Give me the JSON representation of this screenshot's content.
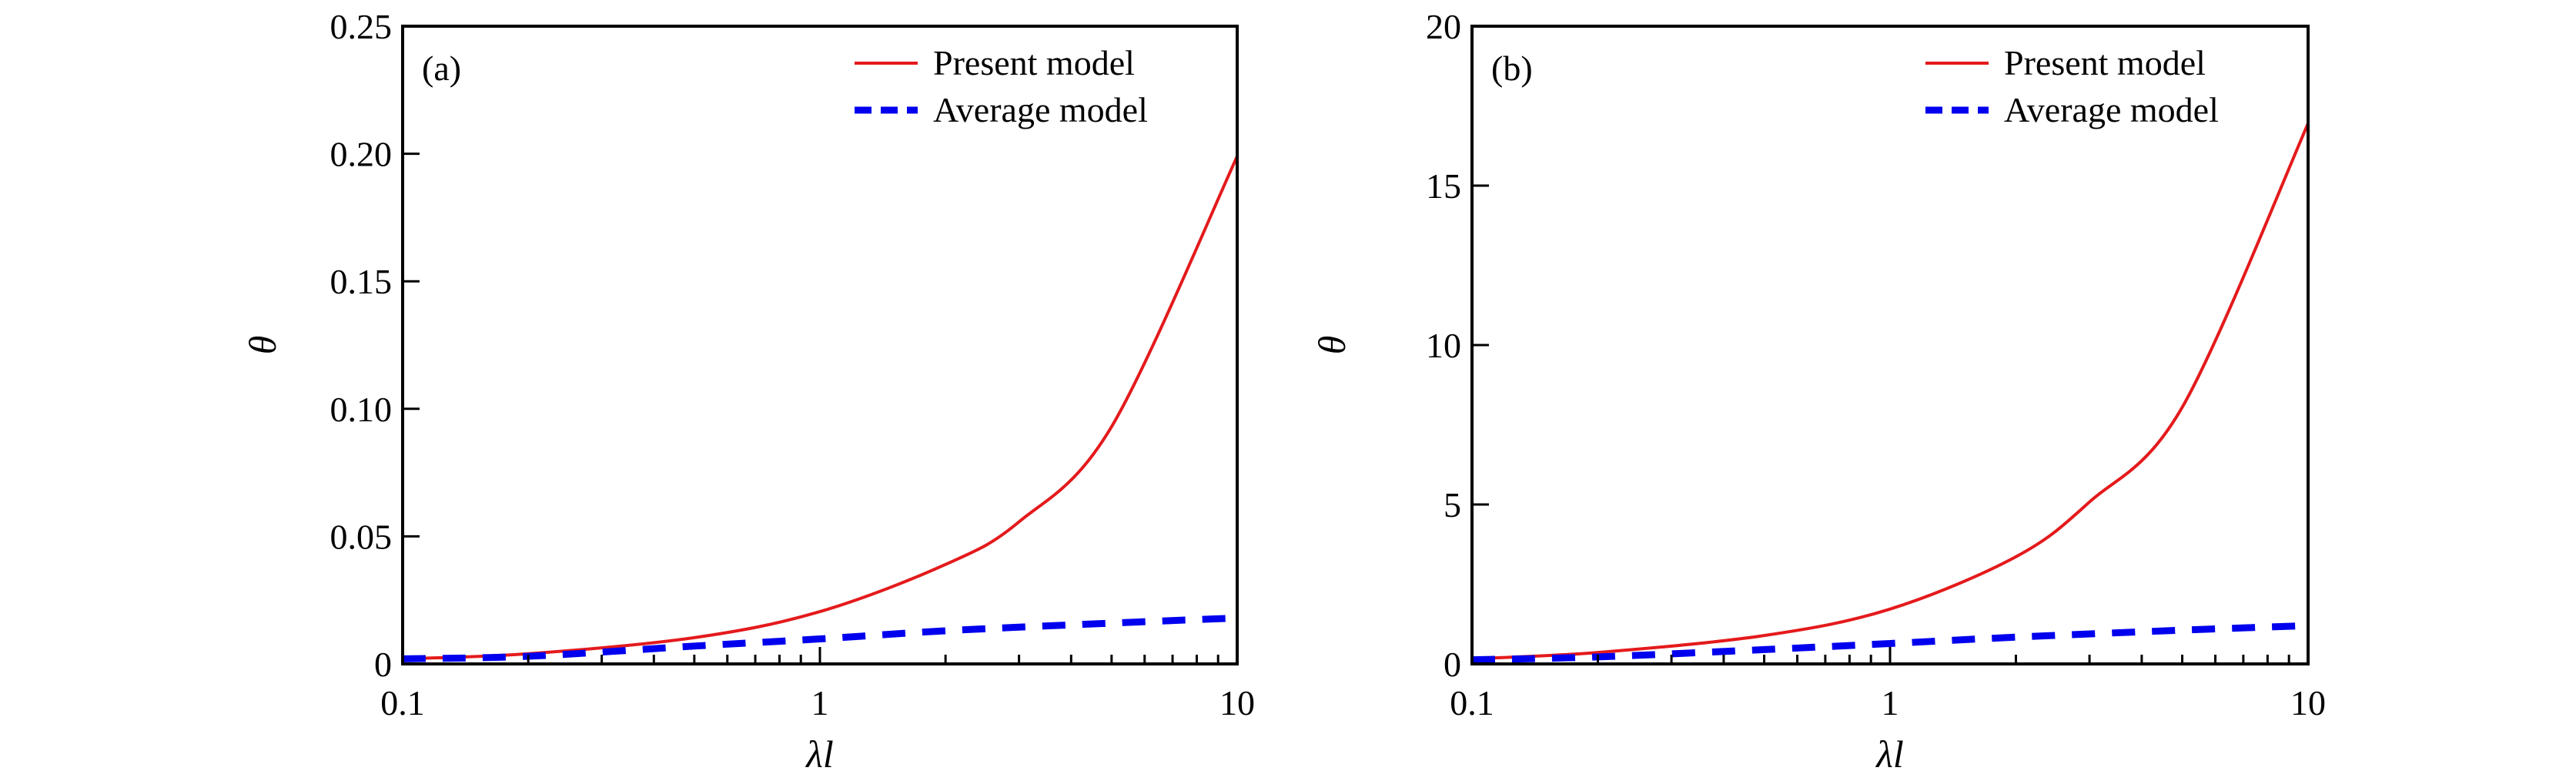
{
  "chart_data": [
    {
      "type": "line",
      "panel_label": "(a)",
      "xlabel": "λl",
      "ylabel": "θ",
      "xscale": "log",
      "xlim": [
        0.1,
        10
      ],
      "ylim": [
        0,
        0.25
      ],
      "xticks": [
        0.1,
        1,
        10
      ],
      "xtick_labels": [
        "0.1",
        "1",
        "10"
      ],
      "yticks": [
        0,
        0.05,
        0.1,
        0.15,
        0.2,
        0.25
      ],
      "ytick_labels": [
        "0",
        "0.05",
        "0.10",
        "0.15",
        "0.20",
        "0.25"
      ],
      "grid": false,
      "legend_position": "top-right",
      "series": [
        {
          "name": "Present model",
          "color": "#e41a1c",
          "style": "solid",
          "x": [
            0.1,
            0.2,
            0.5,
            1,
            2,
            3,
            5,
            10
          ],
          "y": [
            0.002,
            0.004,
            0.0103,
            0.0205,
            0.039,
            0.0557,
            0.093,
            0.199
          ]
        },
        {
          "name": "Average model",
          "color": "#0000ee",
          "style": "dashed",
          "x": [
            0.1,
            0.2,
            0.5,
            1,
            2,
            5,
            10
          ],
          "y": [
            0.002,
            0.003,
            0.007,
            0.0098,
            0.013,
            0.016,
            0.018
          ]
        }
      ]
    },
    {
      "type": "line",
      "panel_label": "(b)",
      "xlabel": "λl",
      "ylabel": "θ",
      "xscale": "log",
      "xlim": [
        0.1,
        10
      ],
      "ylim": [
        0,
        20
      ],
      "xticks": [
        0.1,
        1,
        10
      ],
      "xtick_labels": [
        "0.1",
        "1",
        "10"
      ],
      "yticks": [
        0,
        5,
        10,
        15,
        20
      ],
      "ytick_labels": [
        "0",
        "5",
        "10",
        "15",
        "20"
      ],
      "grid": false,
      "legend_position": "top-right",
      "series": [
        {
          "name": "Present model",
          "color": "#e41a1c",
          "style": "solid",
          "x": [
            0.1,
            0.2,
            0.5,
            1,
            2,
            3,
            5,
            10
          ],
          "y": [
            0.16,
            0.36,
            0.89,
            1.72,
            3.36,
            5.08,
            8.05,
            16.95
          ]
        },
        {
          "name": "Average model",
          "color": "#0000ee",
          "style": "dashed",
          "x": [
            0.1,
            0.2,
            0.5,
            1,
            2,
            5,
            10
          ],
          "y": [
            0.13,
            0.22,
            0.45,
            0.64,
            0.84,
            1.06,
            1.2
          ]
        }
      ]
    }
  ]
}
